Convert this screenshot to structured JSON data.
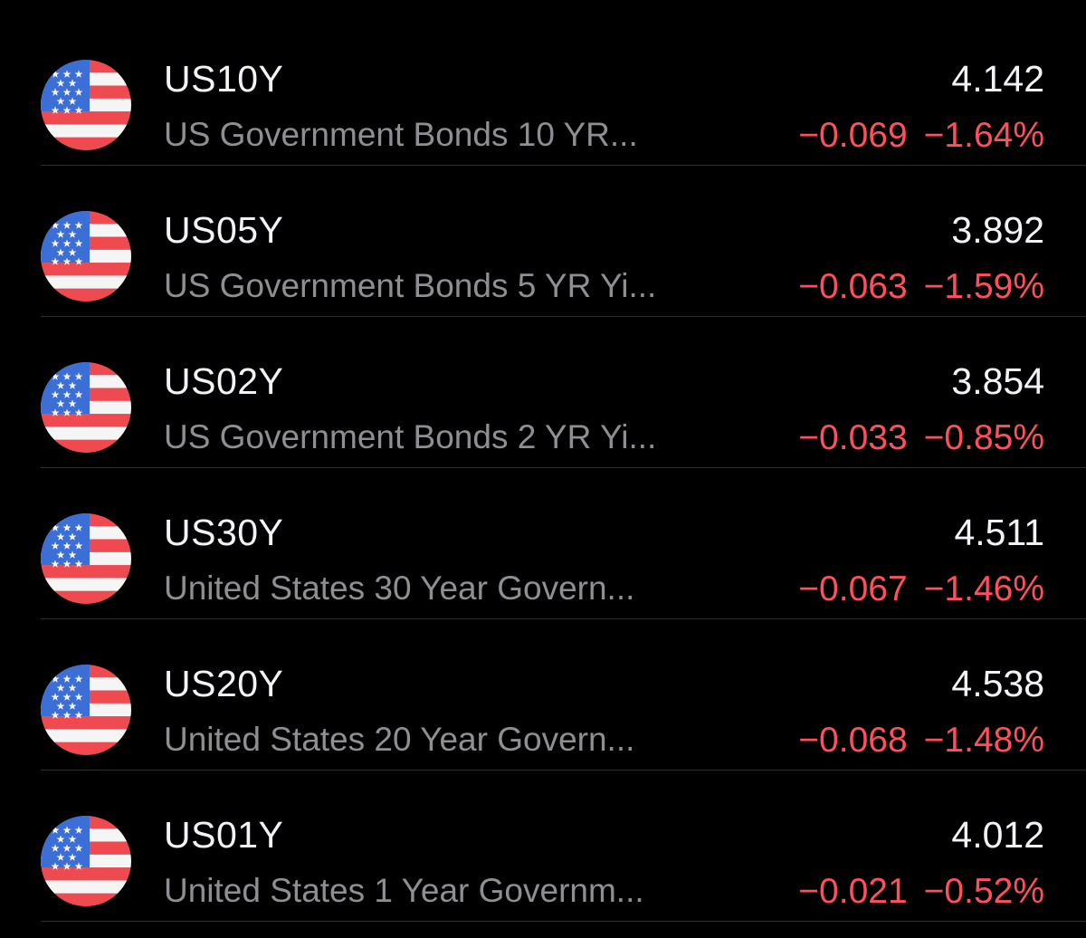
{
  "colors": {
    "background": "#000000",
    "symbol_text": "#f2f2f7",
    "name_text": "#8e8e93",
    "negative": "#ff4f5e",
    "divider": "#2c2c2e",
    "flag_blue": "#3b6fd6",
    "flag_red": "#ee4a4f",
    "flag_white": "#f5f5f5"
  },
  "watchlist": [
    {
      "flag_icon": "us-flag-icon",
      "symbol": "US10Y",
      "name": "US Government Bonds 10 YR...",
      "price": "4.142",
      "change": "−0.069",
      "change_percent": "−1.64%"
    },
    {
      "flag_icon": "us-flag-icon",
      "symbol": "US05Y",
      "name": "US Government Bonds 5 YR Yi...",
      "price": "3.892",
      "change": "−0.063",
      "change_percent": "−1.59%"
    },
    {
      "flag_icon": "us-flag-icon",
      "symbol": "US02Y",
      "name": "US Government Bonds 2 YR Yi...",
      "price": "3.854",
      "change": "−0.033",
      "change_percent": "−0.85%"
    },
    {
      "flag_icon": "us-flag-icon",
      "symbol": "US30Y",
      "name": "United States 30 Year Govern...",
      "price": "4.511",
      "change": "−0.067",
      "change_percent": "−1.46%"
    },
    {
      "flag_icon": "us-flag-icon",
      "symbol": "US20Y",
      "name": "United States 20 Year Govern...",
      "price": "4.538",
      "change": "−0.068",
      "change_percent": "−1.48%"
    },
    {
      "flag_icon": "us-flag-icon",
      "symbol": "US01Y",
      "name": "United States 1 Year Governm...",
      "price": "4.012",
      "change": "−0.021",
      "change_percent": "−0.52%"
    }
  ]
}
